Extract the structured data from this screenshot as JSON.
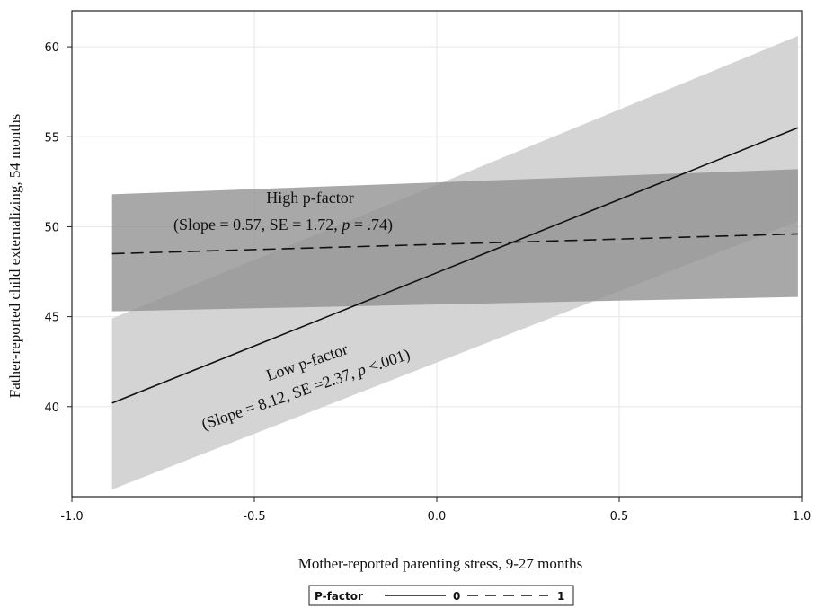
{
  "chart_data": {
    "type": "line",
    "xlabel": "Mother-reported parenting stress, 9-27 months",
    "ylabel": "Father-reported child externalizing,  54 months",
    "xlim": [
      -1.0,
      1.0
    ],
    "ylim": [
      35,
      62
    ],
    "x_ticks": [
      -1.0,
      -0.5,
      0.0,
      0.5,
      1.0
    ],
    "x_tick_labels": [
      "-1.0",
      "-0.5",
      "0.0",
      "0.5",
      "1.0"
    ],
    "y_ticks": [
      40,
      45,
      50,
      55,
      60
    ],
    "y_tick_labels": [
      "40",
      "45",
      "50",
      "55",
      "60"
    ],
    "grid": true,
    "series": [
      {
        "name": "0",
        "style": "solid",
        "color": "#111111",
        "band_color": "#d4d4d4",
        "x": [
          -0.89,
          0.99
        ],
        "y": [
          40.2,
          55.5
        ],
        "lower": [
          35.4,
          50.3
        ],
        "upper": [
          44.9,
          60.6
        ]
      },
      {
        "name": "1",
        "style": "dashed",
        "color": "#111111",
        "band_color": "#8f8f8f",
        "x": [
          -0.89,
          0.99
        ],
        "y": [
          48.5,
          49.6
        ],
        "lower": [
          45.3,
          46.1
        ],
        "upper": [
          51.8,
          53.2
        ]
      }
    ],
    "annotations": [
      {
        "line1": "High p-factor",
        "line2_pre": "(Slope = 0.57, SE = 1.72, ",
        "line2_p": "p",
        "line2_post": " = .74)"
      },
      {
        "line1": "Low p-factor",
        "line2_pre": "(Slope = 8.12, SE =2.37, ",
        "line2_p": "p",
        "line2_post": " <.001)"
      }
    ],
    "legend": {
      "title": "P-factor",
      "position": "bottom-center"
    }
  }
}
